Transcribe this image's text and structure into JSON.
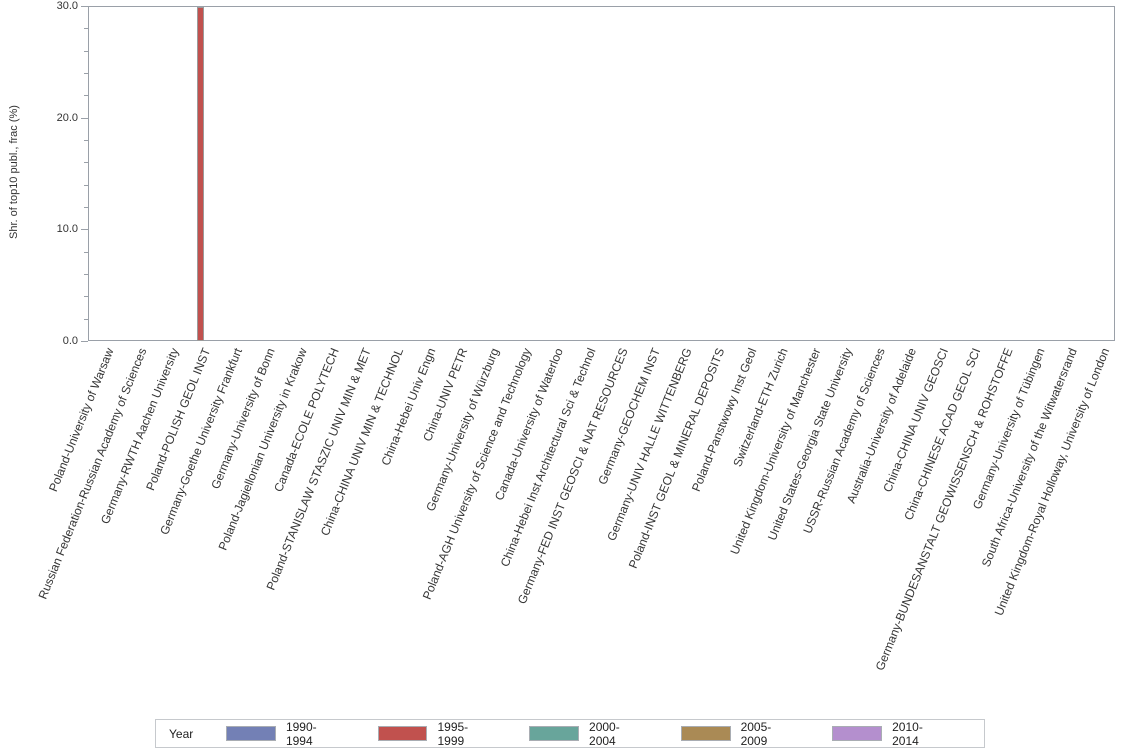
{
  "chart_data": {
    "type": "bar",
    "title": "",
    "xlabel": "",
    "ylabel": "Shr. of top10 publ., frac (%)",
    "ylim": [
      0,
      30
    ],
    "grid": false,
    "y_ticks": [
      {
        "value": 0,
        "label": "0.0"
      },
      {
        "value": 10,
        "label": "10.0"
      },
      {
        "value": 20,
        "label": "20.0"
      },
      {
        "value": 30,
        "label": "30.0"
      }
    ],
    "y_minor_tick_step": 2,
    "categories": [
      "Poland-University of Warsaw",
      "Russian Federation-Russian Academy of Sciences",
      "Germany-RWTH Aachen University",
      "Poland-POLISH GEOL INST",
      "Germany-Goethe University Frankfurt",
      "Germany-University of Bonn",
      "Poland-Jagiellonian University in Krakow",
      "Canada-ECOLE POLYTECH",
      "Poland-STANISLAW STASZIC UNIV MIN & MET",
      "China-CHINA UNIV MIN & TECHNOL",
      "China-Hebei Univ Engn",
      "China-UNIV PETR",
      "Germany-University of Würzburg",
      "Poland-AGH University of Science and Technology",
      "Canada-University of Waterloo",
      "China-Hebei Inst Architectural Sci & Technol",
      "Germany-FED INST GEOSCI & NAT RESOURCES",
      "Germany-GEOCHEM INST",
      "Germany-UNIV HALLE WITTENBERG",
      "Poland-INST GEOL & MINERAL DEPOSITS",
      "Poland-Panstwowy Inst Geol",
      "Switzerland-ETH Zurich",
      "United Kingdom-University of Manchester",
      "United States-Georgia State University",
      "USSR-Russian Academy of Sciences",
      "Australia-University of Adelaide",
      "China-CHINA UNIV GEOSCI",
      "China-CHINESE ACAD GEOL SCI",
      "Germany-BUNDESANSTALT GEOWISSENSCH & ROHSTOFFE",
      "Germany-University of Tübingen",
      "South Africa-University of the Witwatersrand",
      "United Kingdom-Royal Holloway, University of London"
    ],
    "series": [
      {
        "name": "1990-1994",
        "color": "#7380b5"
      },
      {
        "name": "1995-1999",
        "color": "#c1514e"
      },
      {
        "name": "2000-2004",
        "color": "#68a59b"
      },
      {
        "name": "2005-2009",
        "color": "#aa8a55"
      },
      {
        "name": "2010-2014",
        "color": "#b48fce"
      }
    ],
    "bars": [
      {
        "category": "Poland-POLISH GEOL INST",
        "category_index": 3,
        "series": "1995-1999",
        "value": 29.9
      }
    ],
    "legend": {
      "title": "Year",
      "position": "bottom"
    }
  }
}
